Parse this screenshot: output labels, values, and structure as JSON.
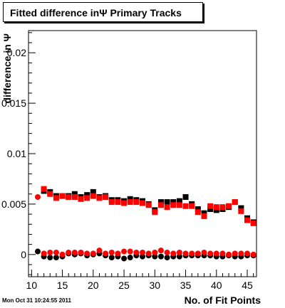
{
  "chart_data": {
    "type": "scatter",
    "title": "Fitted difference inΨ  Primary Tracks",
    "xlabel": "No. of Fit Points",
    "ylabel": "difference in Ψ",
    "xlim": [
      9.5,
      46.5
    ],
    "ylim": [
      -0.0022,
      0.0222
    ],
    "xticks": [
      10,
      15,
      20,
      25,
      30,
      35,
      40,
      45
    ],
    "xtick_labels": [
      "10",
      "15",
      "20",
      "25",
      "30",
      "35",
      "40",
      "45"
    ],
    "yticks": [
      0,
      0.005,
      0.01,
      0.015,
      0.02
    ],
    "ytick_labels": [
      "0",
      "0.005",
      "0.01",
      "0.015",
      "0.02"
    ],
    "grid": false,
    "series": [
      {
        "marker": "square",
        "color": "#000000",
        "x": [
          12,
          13,
          14,
          15,
          16,
          17,
          18,
          19,
          20,
          21,
          22,
          23,
          24,
          25,
          26,
          27,
          28,
          29,
          30,
          31,
          32,
          33,
          34,
          35,
          36,
          37,
          38,
          39,
          40,
          41,
          42,
          43,
          44,
          45,
          46
        ],
        "y": [
          0.0063,
          0.0062,
          0.0058,
          0.0058,
          0.0058,
          0.006,
          0.0057,
          0.0059,
          0.0062,
          0.0057,
          0.0058,
          0.0054,
          0.0054,
          0.0053,
          0.0055,
          0.0054,
          0.0053,
          0.005,
          0.0044,
          0.0052,
          0.0052,
          0.0052,
          0.0053,
          0.0057,
          0.005,
          0.0045,
          0.0041,
          0.0045,
          0.0044,
          0.0045,
          0.0047,
          0.0052,
          0.0046,
          0.0036,
          0.0032
        ]
      },
      {
        "marker": "square",
        "color": "#ff0000",
        "x": [
          12,
          13,
          14,
          15,
          16,
          17,
          18,
          19,
          20,
          21,
          22,
          23,
          24,
          25,
          26,
          27,
          28,
          29,
          30,
          31,
          32,
          33,
          34,
          35,
          36,
          37,
          38,
          39,
          40,
          41,
          42,
          43,
          44,
          45,
          46
        ],
        "y": [
          0.0065,
          0.006,
          0.0056,
          0.0058,
          0.0057,
          0.0057,
          0.0055,
          0.0056,
          0.0058,
          0.0056,
          0.0057,
          0.0052,
          0.0052,
          0.0051,
          0.0052,
          0.0052,
          0.0051,
          0.0049,
          0.0042,
          0.0049,
          0.0047,
          0.0049,
          0.0049,
          0.0048,
          0.0048,
          0.0042,
          0.0038,
          0.0048,
          0.0047,
          0.0047,
          0.0048,
          0.0052,
          0.0043,
          0.0034,
          0.0031
        ]
      },
      {
        "marker": "circle",
        "color": "#000000",
        "x": [
          11,
          12,
          13,
          14,
          15,
          16,
          17,
          18,
          19,
          20,
          21,
          22,
          23,
          24,
          25,
          26,
          27,
          28,
          29,
          30,
          31,
          32,
          33,
          34,
          35,
          36,
          37,
          38,
          39,
          40,
          41,
          42,
          43,
          44,
          45,
          46
        ],
        "y": [
          0.0003,
          -0.0002,
          -0.0003,
          -0.0003,
          -0.0002,
          0.0001,
          0.0,
          0.0001,
          -0.0001,
          0.0,
          0.0001,
          -0.0001,
          -0.0003,
          -0.0002,
          -0.0004,
          -0.0003,
          -0.0001,
          -0.0002,
          -0.0001,
          -0.0002,
          -0.0002,
          -0.0003,
          -0.0002,
          -0.0002,
          -0.0001,
          -0.0001,
          -0.0001,
          -0.0001,
          -0.0001,
          -0.0002,
          -0.0002,
          -0.0001,
          -0.0002,
          -0.0002,
          -0.0001,
          -0.0001
        ]
      },
      {
        "marker": "circle",
        "color": "#ff0000",
        "x": [
          11,
          12,
          13,
          14,
          15,
          16,
          17,
          18,
          19,
          20,
          21,
          22,
          23,
          24,
          25,
          26,
          27,
          28,
          29,
          30,
          31,
          32,
          33,
          34,
          35,
          36,
          37,
          38,
          39,
          40,
          41,
          42,
          43,
          44,
          45,
          46
        ],
        "y": [
          0.0057,
          0.0001,
          0.0002,
          0.0002,
          0.0,
          0.0002,
          0.0002,
          0.0002,
          0.0001,
          0.0001,
          0.0004,
          0.0001,
          0.0002,
          0.0001,
          0.0003,
          0.0003,
          0.0002,
          0.0002,
          0.0001,
          0.0002,
          0.0004,
          0.0002,
          0.0001,
          0.0002,
          0.0001,
          0.0001,
          0.0001,
          0.0002,
          0.0001,
          0.0001,
          0.0001,
          0.0,
          0.0001,
          0.0001,
          0.0001,
          0.0
        ]
      }
    ]
  },
  "footer": {
    "timestamp": "Mon Oct 31 10:24:55 2011"
  }
}
